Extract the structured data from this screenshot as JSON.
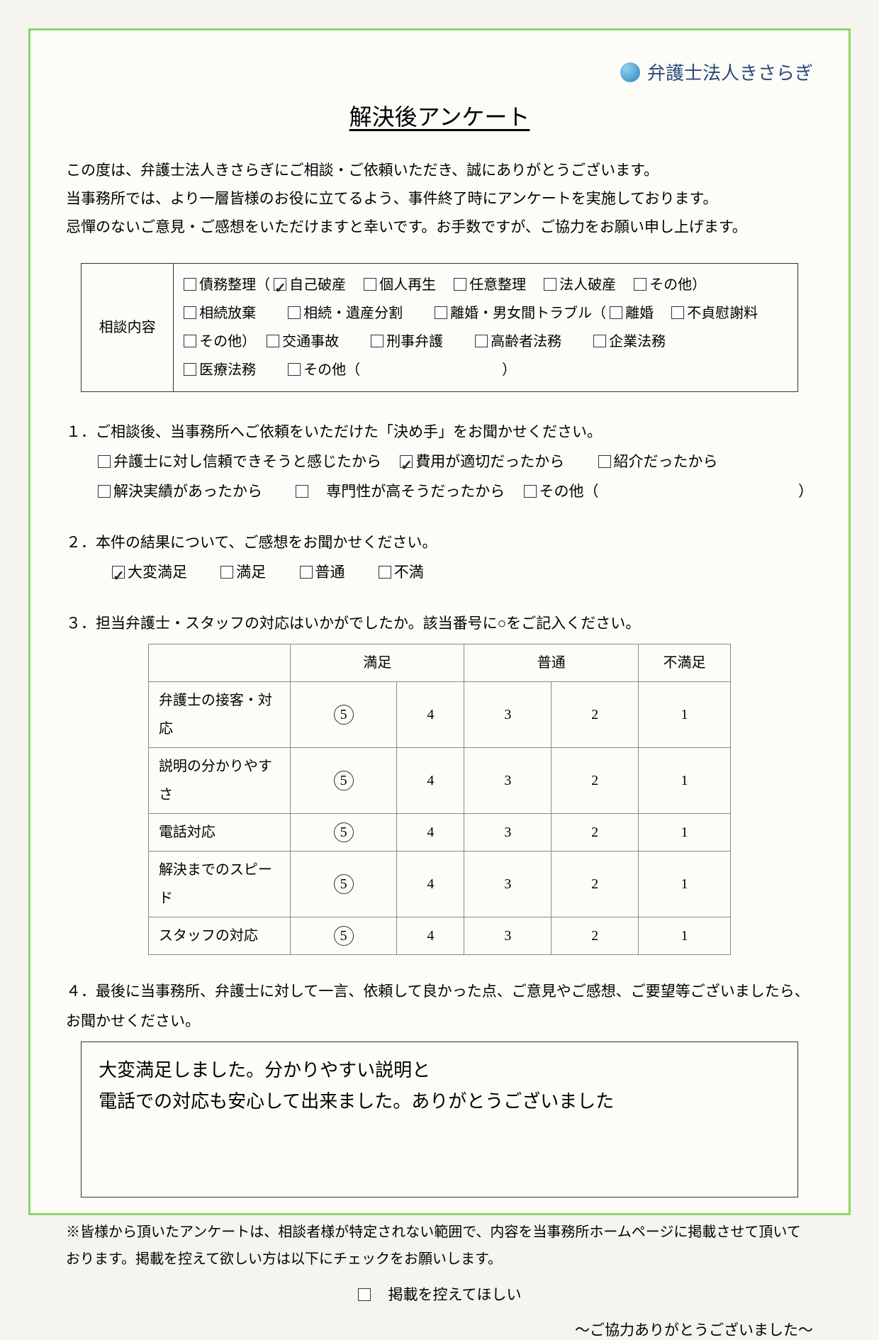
{
  "logo_text": "弁護士法人きさらぎ",
  "title": "解決後アンケート",
  "intro": {
    "l1": "この度は、弁護士法人きさらぎにご相談・ご依頼いただき、誠にありがとうございます。",
    "l2": "当事務所では、より一層皆様のお役に立てるよう、事件終了時にアンケートを実施しております。",
    "l3": "忌憚のないご意見・ご感想をいただけますと幸いです。お手数ですが、ご協力をお願い申し上げます。"
  },
  "consult": {
    "label": "相談内容",
    "items": {
      "saimu": "債務整理（",
      "jikohasan": "自己破産",
      "kojinsaisei": "個人再生",
      "niniseiri": "任意整理",
      "houjinhasan": "法人破産",
      "sonota1": "その他）",
      "souzokuhouki": "相続放棄",
      "souzokuisan": "相続・遺産分割",
      "rikon": "離婚・男女間トラブル（",
      "rikon2": "離婚",
      "futei": "不貞慰謝料",
      "sonota2": "その他）",
      "koutsu": "交通事故",
      "keiji": "刑事弁護",
      "kourei": "高齢者法務",
      "kigyou": "企業法務",
      "iryou": "医療法務",
      "sonota3": "その他（",
      "close": "）"
    }
  },
  "q1": {
    "text": "１．ご相談後、当事務所へご依頼をいただけた「決め手」をお聞かせください。",
    "o1": "弁護士に対し信頼できそうと感じたから",
    "o2": "費用が適切だったから",
    "o3": "紹介だったから",
    "o4": "解決実績があったから",
    "o5": "専門性が高そうだったから",
    "o6": "その他（",
    "close": "）"
  },
  "q2": {
    "text": "２．本件の結果について、ご感想をお聞かせください。",
    "o1": "大変満足",
    "o2": "満足",
    "o3": "普通",
    "o4": "不満"
  },
  "q3": {
    "text": "３．担当弁護士・スタッフの対応はいかがでしたか。該当番号に○をご記入ください。",
    "h_manzoku": "満足",
    "h_futsuu": "普通",
    "h_fumanzoku": "不満足",
    "rows": {
      "r1": "弁護士の接客・対応",
      "r2": "説明の分かりやすさ",
      "r3": "電話対応",
      "r4": "解決までのスピード",
      "r5": "スタッフの対応"
    },
    "n5": "5",
    "n4": "4",
    "n3": "3",
    "n2": "2",
    "n1": "1"
  },
  "q4": {
    "text": "４．最後に当事務所、弁護士に対して一言、依頼して良かった点、ご意見やご感想、ご要望等ございましたら、お聞かせください。",
    "answer_l1": "大変満足しました。分かりやすい説明と",
    "answer_l2": "電話での対応も安心して出来ました。ありがとうございました"
  },
  "footer": {
    "note": "※皆様から頂いたアンケートは、相談者様が特定されない範囲で、内容を当事務所ホームページに掲載させて頂いております。掲載を控えて欲しい方は以下にチェックをお願いします。",
    "checklabel": "掲載を控えてほしい",
    "thanks": "～ご協力ありがとうございました～"
  },
  "colors": {
    "border": "#8fd46a",
    "text": "#222222",
    "bg": "#fdfcf8"
  }
}
